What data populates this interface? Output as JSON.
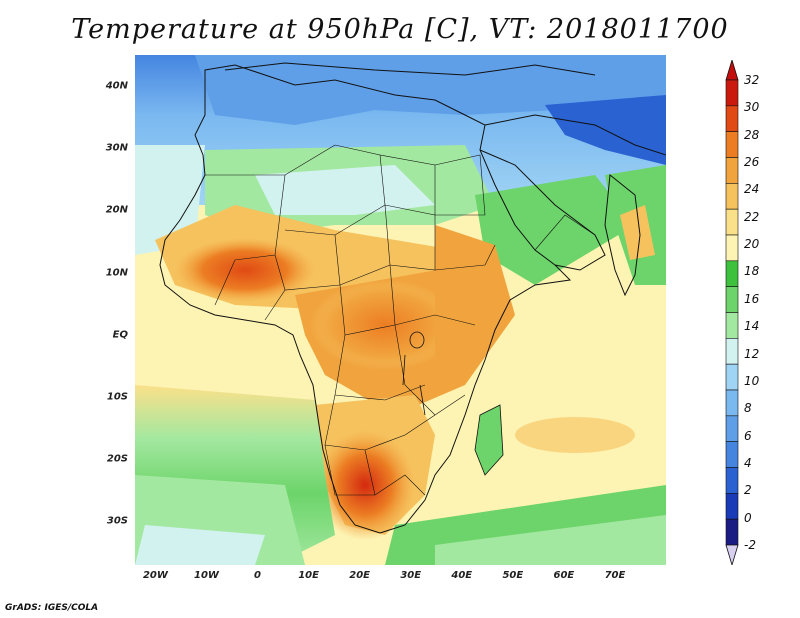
{
  "title": "Temperature at 950hPa [C], VT: 2018011700",
  "credit": "GrADS: IGES/COLA",
  "map": {
    "projection": "lat-lon",
    "lon_range": [
      -24,
      80
    ],
    "lat_range": [
      -37,
      45
    ],
    "lat_ticks": [
      {
        "value": 40,
        "label": "40N"
      },
      {
        "value": 30,
        "label": "30N"
      },
      {
        "value": 20,
        "label": "20N"
      },
      {
        "value": 10,
        "label": "10N"
      },
      {
        "value": 0,
        "label": "EQ"
      },
      {
        "value": -10,
        "label": "10S"
      },
      {
        "value": -20,
        "label": "20S"
      },
      {
        "value": -30,
        "label": "30S"
      }
    ],
    "lon_ticks": [
      {
        "value": -20,
        "label": "20W"
      },
      {
        "value": -10,
        "label": "10W"
      },
      {
        "value": 0,
        "label": "0"
      },
      {
        "value": 10,
        "label": "10E"
      },
      {
        "value": 20,
        "label": "20E"
      },
      {
        "value": 30,
        "label": "30E"
      },
      {
        "value": 40,
        "label": "40E"
      },
      {
        "value": 50,
        "label": "50E"
      },
      {
        "value": 60,
        "label": "60E"
      },
      {
        "value": 70,
        "label": "70E"
      }
    ]
  },
  "colorbar": {
    "levels": [
      "-2",
      "0",
      "2",
      "4",
      "6",
      "8",
      "10",
      "12",
      "14",
      "16",
      "18",
      "20",
      "22",
      "24",
      "26",
      "28",
      "30",
      "32"
    ],
    "colors": [
      "#1b1b84",
      "#1a3bb8",
      "#2a62d2",
      "#4585e0",
      "#5e9fe8",
      "#7ab8f0",
      "#a0d4f4",
      "#d2f2f0",
      "#a3e8a0",
      "#6cd46a",
      "#3ec23e",
      "#fdf3b2",
      "#fbe08a",
      "#f6c25e",
      "#f1a43e",
      "#ec7d23",
      "#e04a14",
      "#c91a0d"
    ],
    "under_color": "#d8d0f0",
    "over_color": "#c40d0d"
  }
}
